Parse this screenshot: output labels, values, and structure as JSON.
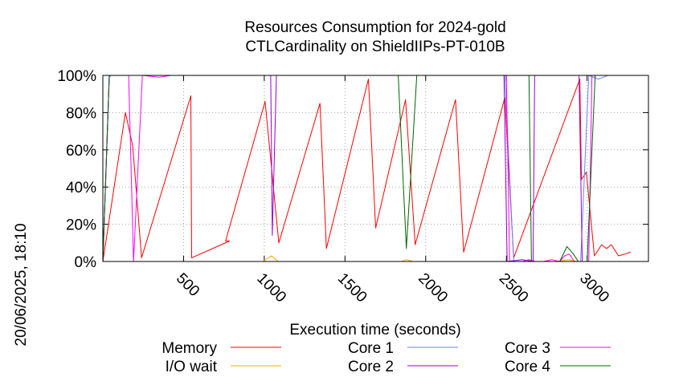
{
  "chart_data": {
    "type": "line",
    "title_line1": "Resources Consumption for 2024-gold",
    "title_line2": "CTLCardinality on ShieldIIPs-PT-010B",
    "xlabel": "Execution time (seconds)",
    "side_label": "20/06/2025, 18:10",
    "xlim": [
      0,
      3380
    ],
    "ylim": [
      0,
      100
    ],
    "x_ticks": [
      500,
      1000,
      1500,
      2000,
      2500,
      3000
    ],
    "y_ticks": [
      {
        "value": 0,
        "label": "0%"
      },
      {
        "value": 20,
        "label": "20%"
      },
      {
        "value": 40,
        "label": "40%"
      },
      {
        "value": 60,
        "label": "60%"
      },
      {
        "value": 80,
        "label": "80%"
      },
      {
        "value": 100,
        "label": "100%"
      }
    ],
    "grid": true,
    "legend_position": "bottom",
    "series": [
      {
        "name": "Memory",
        "color": "#ff0000",
        "points": [
          [
            0,
            0
          ],
          [
            140,
            80
          ],
          [
            185,
            62
          ],
          [
            240,
            2
          ],
          [
            545,
            89
          ],
          [
            550,
            2
          ],
          [
            785,
            11
          ],
          [
            760,
            11
          ],
          [
            1005,
            86
          ],
          [
            1090,
            10
          ],
          [
            1345,
            85
          ],
          [
            1385,
            7
          ],
          [
            1645,
            98
          ],
          [
            1690,
            18
          ],
          [
            1875,
            87
          ],
          [
            1935,
            9
          ],
          [
            2185,
            87
          ],
          [
            2235,
            5
          ],
          [
            2490,
            88
          ],
          [
            2545,
            2
          ],
          [
            2955,
            98
          ],
          [
            2965,
            44
          ],
          [
            2995,
            48
          ],
          [
            3045,
            3
          ],
          [
            3090,
            9
          ],
          [
            3120,
            7
          ],
          [
            3150,
            9
          ],
          [
            3195,
            3
          ],
          [
            3235,
            4
          ],
          [
            3270,
            5
          ]
        ]
      },
      {
        "name": "I/O wait",
        "color": "#ffa500",
        "points": [
          [
            0,
            0
          ],
          [
            990,
            0
          ],
          [
            1045,
            3
          ],
          [
            1085,
            0
          ],
          [
            1850,
            0
          ],
          [
            1880,
            1
          ],
          [
            1920,
            0
          ],
          [
            2820,
            0
          ],
          [
            2880,
            1
          ],
          [
            2940,
            0
          ],
          [
            3270,
            0
          ]
        ]
      },
      {
        "name": "Core 1",
        "color": "#6a7fff",
        "points": [
          [
            0,
            0
          ],
          [
            40,
            99
          ],
          [
            50,
            100
          ],
          [
            1000,
            100
          ],
          [
            1045,
            100
          ],
          [
            2490,
            100
          ],
          [
            2545,
            0
          ],
          [
            2940,
            0
          ],
          [
            2960,
            0
          ],
          [
            3010,
            100
          ],
          [
            3070,
            98
          ],
          [
            3100,
            99
          ],
          [
            3130,
            100
          ],
          [
            3270,
            100
          ]
        ]
      },
      {
        "name": "Core 2",
        "color": "#9400d3",
        "points": [
          [
            0,
            0
          ],
          [
            40,
            100
          ],
          [
            1040,
            100
          ],
          [
            1050,
            14
          ],
          [
            1075,
            100
          ],
          [
            2485,
            100
          ],
          [
            2505,
            0
          ],
          [
            2600,
            1
          ],
          [
            2665,
            0
          ],
          [
            2675,
            100
          ],
          [
            2950,
            100
          ],
          [
            2970,
            0
          ],
          [
            3270,
            0
          ]
        ]
      },
      {
        "name": "Core 3",
        "color": "#ff00ff",
        "points": [
          [
            0,
            0
          ],
          [
            40,
            100
          ],
          [
            160,
            100
          ],
          [
            190,
            0
          ],
          [
            245,
            100
          ],
          [
            350,
            99
          ],
          [
            420,
            100
          ],
          [
            1845,
            100
          ],
          [
            1855,
            100
          ],
          [
            1870,
            100
          ],
          [
            2500,
            100
          ],
          [
            2520,
            0
          ],
          [
            2600,
            0
          ],
          [
            2640,
            1
          ],
          [
            2680,
            0
          ],
          [
            2730,
            0
          ],
          [
            2780,
            1
          ],
          [
            2830,
            0
          ],
          [
            2860,
            3
          ],
          [
            2890,
            4
          ],
          [
            2920,
            0
          ],
          [
            3010,
            0
          ],
          [
            3030,
            100
          ],
          [
            3270,
            100
          ]
        ]
      },
      {
        "name": "Core 4",
        "color": "#006400",
        "points": [
          [
            0,
            0
          ],
          [
            40,
            100
          ],
          [
            1830,
            100
          ],
          [
            1880,
            7
          ],
          [
            1945,
            100
          ],
          [
            2640,
            100
          ],
          [
            2655,
            0
          ],
          [
            2830,
            0
          ],
          [
            2875,
            8
          ],
          [
            2915,
            4
          ],
          [
            2945,
            0
          ],
          [
            3000,
            0
          ],
          [
            3050,
            100
          ],
          [
            3270,
            100
          ]
        ]
      }
    ]
  }
}
